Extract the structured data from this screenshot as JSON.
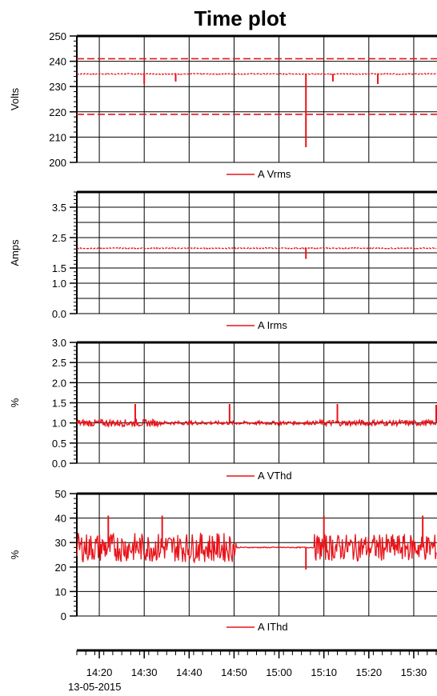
{
  "title": "Time plot",
  "date_label": "13-05-2015",
  "x_axis": {
    "range": [
      "14:15",
      "15:35"
    ],
    "ticks": [
      "14:20",
      "14:30",
      "14:40",
      "14:50",
      "15:00",
      "15:10",
      "15:20",
      "15:30"
    ]
  },
  "colors": {
    "series": "#e8141a",
    "grid": "#000000",
    "axis": "#000000"
  },
  "chart_data": [
    {
      "type": "line",
      "ylabel": "Volts",
      "ylim": [
        200,
        250
      ],
      "yticks": [
        "200",
        "210",
        "220",
        "230",
        "240",
        "250"
      ],
      "ytick_values": [
        200,
        210,
        220,
        230,
        240,
        250
      ],
      "reference_lines": [
        241,
        219
      ],
      "series": [
        {
          "name": "A Vrms",
          "baseline": 235
        }
      ],
      "events": [
        {
          "x": "14:30",
          "y": 231
        },
        {
          "x": "14:37",
          "y": 232
        },
        {
          "x": "15:06",
          "y": 206
        },
        {
          "x": "15:12",
          "y": 232
        },
        {
          "x": "15:22",
          "y": 231
        }
      ],
      "legend": "bottom-center",
      "grid": true
    },
    {
      "type": "line",
      "ylabel": "Amps",
      "ylim": [
        0,
        4
      ],
      "yticks": [
        "0.0",
        "1.0",
        "1.5",
        "2.5",
        "3.5"
      ],
      "ytick_values": [
        0.0,
        1.0,
        1.5,
        2.5,
        3.5
      ],
      "series": [
        {
          "name": "A Irms",
          "baseline": 2.15
        }
      ],
      "events": [
        {
          "x": "15:06",
          "y": 1.8
        }
      ],
      "legend": "bottom-center",
      "grid": true
    },
    {
      "type": "line",
      "ylabel": "%",
      "ylim": [
        0,
        3
      ],
      "yticks": [
        "0.0",
        "0.5",
        "1.0",
        "1.5",
        "2.0",
        "2.5",
        "3.0"
      ],
      "ytick_values": [
        0.0,
        0.5,
        1.0,
        1.5,
        2.0,
        2.5,
        3.0
      ],
      "series": [
        {
          "name": "A VThd",
          "baseline": 1.0
        }
      ],
      "events": [
        {
          "x": "14:28",
          "y": 1.47
        },
        {
          "x": "14:49",
          "y": 1.47
        },
        {
          "x": "15:13",
          "y": 1.47
        },
        {
          "x": "15:35",
          "y": 1.45
        }
      ],
      "legend": "bottom-center",
      "grid": true
    },
    {
      "type": "line",
      "ylabel": "%",
      "ylim": [
        0,
        50
      ],
      "yticks": [
        "0",
        "10",
        "20",
        "30",
        "40",
        "50"
      ],
      "ytick_values": [
        0,
        10,
        20,
        30,
        40,
        50
      ],
      "series": [
        {
          "name": "A IThd",
          "baseline": 28
        }
      ],
      "events": [
        {
          "x": "14:22",
          "y": 41
        },
        {
          "x": "14:34",
          "y": 41
        },
        {
          "x": "15:06",
          "y": 19
        },
        {
          "x": "15:10",
          "y": 41
        },
        {
          "x": "15:32",
          "y": 41
        }
      ],
      "legend": "bottom-center",
      "grid": true
    }
  ]
}
